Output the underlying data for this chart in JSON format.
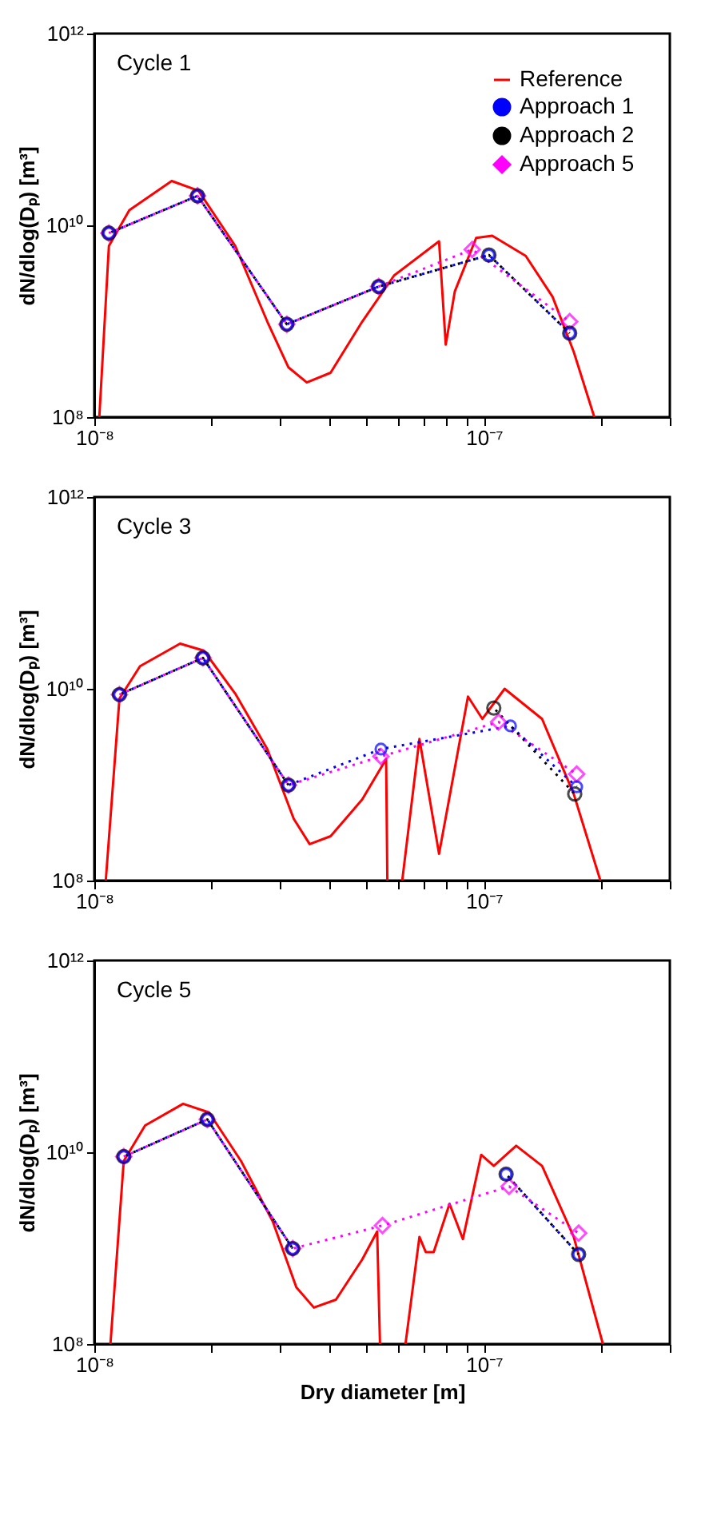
{
  "chart_data": [
    {
      "type": "line",
      "ylabel": "dN/dlog(Dₚ) [m³]",
      "annotations": [
        "Cycle 1"
      ],
      "log": "xy",
      "grid": false,
      "legend": "top right",
      "xlim": [
        1e-08,
        3e-07
      ],
      "ylim": [
        100000000.0,
        1000000000000.0
      ],
      "xticks": [
        {
          "value": 1e-08,
          "label": "10⁻⁸"
        },
        {
          "value": 2e-08,
          "label": null
        },
        {
          "value": 3e-08,
          "label": null
        },
        {
          "value": 4e-08,
          "label": null
        },
        {
          "value": 5e-08,
          "label": null
        },
        {
          "value": 6e-08,
          "label": null
        },
        {
          "value": 7e-08,
          "label": null
        },
        {
          "value": 8e-08,
          "label": null
        },
        {
          "value": 9e-08,
          "label": null
        },
        {
          "value": 1e-07,
          "label": "10⁻⁷"
        },
        {
          "value": 2e-07,
          "label": null
        },
        {
          "value": 3e-07,
          "label": null
        }
      ],
      "yticks": [
        {
          "value": 100000000.0,
          "label": "10⁸"
        },
        {
          "value": 10000000000.0,
          "label": "10¹⁰"
        },
        {
          "value": 1000000000000.0,
          "label": "10¹²"
        }
      ],
      "series": [
        {
          "name": "Reference",
          "color": "#ff0000",
          "line_style": "solid",
          "marker": "none",
          "x": [
            1.03e-08,
            1.09e-08,
            1.23e-08,
            1.58e-08,
            1.85e-08,
            2.3e-08,
            2.78e-08,
            3.15e-08,
            3.51e-08,
            4.04e-08,
            4.87e-08,
            5.88e-08,
            7.55e-08,
            7.67e-08,
            7.98e-08,
            8.42e-08,
            9.55e-08,
            1.05e-07,
            1.28e-07,
            1.5e-07,
            1.7e-07,
            1.92e-07
          ],
          "values": [
            100000000.0,
            6100000000.0,
            14400000000.0,
            29000000000.0,
            23000000000.0,
            6100000000.0,
            990000000.0,
            330000000.0,
            230000000.0,
            290000000.0,
            990000000.0,
            3000000000.0,
            6500000000.0,
            6800000000.0,
            570000000.0,
            2050000000.0,
            7400000000.0,
            7800000000.0,
            4800000000.0,
            1800000000.0,
            480000000.0,
            100000000.0
          ]
        },
        {
          "name": "Approach 1",
          "color": "#0000ff",
          "line_style": "dotted",
          "marker": "circle",
          "x": [
            1.09e-08,
            1.84e-08,
            3.12e-08,
            5.37e-08,
            1.03e-07,
            1.66e-07
          ],
          "values": [
            8300000000.0,
            20300000000.0,
            930000000.0,
            2300000000.0,
            4900000000.0,
            750000000.0
          ]
        },
        {
          "name": "Approach 2",
          "color": "#000000",
          "line_style": "dotted",
          "marker": "circle",
          "x": [
            1.09e-08,
            1.84e-08,
            3.12e-08,
            5.37e-08,
            1.03e-07,
            1.66e-07
          ],
          "values": [
            8300000000.0,
            20300000000.0,
            930000000.0,
            2300000000.0,
            4900000000.0,
            750000000.0
          ]
        },
        {
          "name": "Approach 5",
          "color": "#ff00ff",
          "line_style": "dotted",
          "marker": "diamond",
          "x": [
            1.09e-08,
            1.84e-08,
            3.12e-08,
            5.37e-08,
            9.33e-08,
            1.66e-07
          ],
          "values": [
            8300000000.0,
            20300000000.0,
            930000000.0,
            2300000000.0,
            5600000000.0,
            990000000.0
          ]
        }
      ]
    },
    {
      "type": "line",
      "ylabel": "dN/dlog(Dₚ) [m³]",
      "annotations": [
        "Cycle 3"
      ],
      "log": "xy",
      "grid": false,
      "xlim": [
        1e-08,
        3e-07
      ],
      "ylim": [
        100000000.0,
        1000000000000.0
      ],
      "xticks": [
        {
          "value": 1e-08,
          "label": "10⁻⁸"
        },
        {
          "value": 2e-08,
          "label": null
        },
        {
          "value": 3e-08,
          "label": null
        },
        {
          "value": 4e-08,
          "label": null
        },
        {
          "value": 5e-08,
          "label": null
        },
        {
          "value": 6e-08,
          "label": null
        },
        {
          "value": 7e-08,
          "label": null
        },
        {
          "value": 8e-08,
          "label": null
        },
        {
          "value": 9e-08,
          "label": null
        },
        {
          "value": 1e-07,
          "label": "10⁻⁷"
        },
        {
          "value": 2e-07,
          "label": null
        },
        {
          "value": 3e-07,
          "label": null
        }
      ],
      "yticks": [
        {
          "value": 100000000.0,
          "label": "10⁸"
        },
        {
          "value": 10000000000.0,
          "label": "10¹⁰"
        },
        {
          "value": 1000000000000.0,
          "label": "10¹²"
        }
      ],
      "series": [
        {
          "color": "#ff0000",
          "line_style": "solid",
          "marker": "none",
          "x": [
            1.07e-08,
            1.16e-08,
            1.31e-08,
            1.66e-08,
            1.91e-08,
            2.3e-08,
            2.78e-08,
            3.25e-08,
            3.57e-08,
            4.04e-08,
            4.87e-08,
            5.61e-08,
            5.65e-08,
            5.88e-08,
            6.17e-08,
            6.83e-08,
            7.67e-08,
            9.1e-08,
            9.91e-08,
            1.13e-07,
            1.41e-07,
            1.7e-07,
            1.99e-07
          ],
          "values": [
            100000000.0,
            7900000000.0,
            17200000000.0,
            29600000000.0,
            25000000000.0,
            8900000000.0,
            2350000000.0,
            440000000.0,
            240000000.0,
            290000000.0,
            700000000.0,
            1850000000.0,
            100000000.0,
            null,
            100000000.0,
            3000000000.0,
            190000000.0,
            8300000000.0,
            4850000000.0,
            10000000000.0,
            4850000000.0,
            800000000.0,
            100000000.0
          ]
        },
        {
          "color": "#0000ff",
          "line_style": "dotted",
          "marker": "circle",
          "x": [
            1.16e-08,
            1.9e-08,
            3.15e-08,
            5.44e-08,
            1.17e-07,
            1.73e-07
          ],
          "values": [
            8700000000.0,
            21000000000.0,
            990000000.0,
            2350000000.0,
            4100000000.0,
            950000000.0
          ]
        },
        {
          "color": "#000000",
          "line_style": "dotted",
          "marker": "circle",
          "x": [
            1.16e-08,
            1.9e-08,
            3.15e-08,
            5.44e-08,
            1.06e-07,
            1.71e-07
          ],
          "values": [
            8700000000.0,
            21000000000.0,
            990000000.0,
            null,
            6300000000.0,
            800000000.0
          ]
        },
        {
          "color": "#ff00ff",
          "line_style": "dotted",
          "marker": "diamond",
          "x": [
            1.16e-08,
            1.9e-08,
            3.15e-08,
            5.44e-08,
            1.09e-07,
            1.73e-07
          ],
          "values": [
            8700000000.0,
            21000000000.0,
            990000000.0,
            1970000000.0,
            4500000000.0,
            1290000000.0
          ]
        }
      ]
    },
    {
      "type": "line",
      "xlabel": "Dry diameter [m]",
      "ylabel": "dN/dlog(Dₚ) [m³]",
      "annotations": [
        "Cycle 5"
      ],
      "log": "xy",
      "grid": false,
      "xlim": [
        1e-08,
        3e-07
      ],
      "ylim": [
        100000000.0,
        1000000000000.0
      ],
      "xticks": [
        {
          "value": 1e-08,
          "label": "10⁻⁸"
        },
        {
          "value": 2e-08,
          "label": null
        },
        {
          "value": 3e-08,
          "label": null
        },
        {
          "value": 4e-08,
          "label": null
        },
        {
          "value": 5e-08,
          "label": null
        },
        {
          "value": 6e-08,
          "label": null
        },
        {
          "value": 7e-08,
          "label": null
        },
        {
          "value": 8e-08,
          "label": null
        },
        {
          "value": 9e-08,
          "label": null
        },
        {
          "value": 1e-07,
          "label": "10⁻⁷"
        },
        {
          "value": 2e-07,
          "label": null
        },
        {
          "value": 3e-07,
          "label": null
        }
      ],
      "yticks": [
        {
          "value": 100000000.0,
          "label": "10⁸"
        },
        {
          "value": 10000000000.0,
          "label": "10¹⁰"
        },
        {
          "value": 1000000000000.0,
          "label": "10¹²"
        }
      ],
      "series": [
        {
          "color": "#ff0000",
          "line_style": "solid",
          "marker": "none",
          "x": [
            1.1e-08,
            1.19e-08,
            1.35e-08,
            1.69e-08,
            1.97e-08,
            2.38e-08,
            2.87e-08,
            3.3e-08,
            3.66e-08,
            4.17e-08,
            4.87e-08,
            5.32e-08,
            5.41e-08,
            5.88e-08,
            6.29e-08,
            6.83e-08,
            7.09e-08,
            7.43e-08,
            8.16e-08,
            8.83e-08,
            9.84e-08,
            1.06e-07,
            1.21e-07,
            1.41e-07,
            1.7e-07,
            2.02e-07
          ],
          "values": [
            100000000.0,
            8100000000.0,
            19000000000.0,
            32000000000.0,
            26000000000.0,
            8100000000.0,
            1900000000.0,
            390000000.0,
            240000000.0,
            290000000.0,
            760000000.0,
            1490000000.0,
            100000000.0,
            null,
            100000000.0,
            1310000000.0,
            910000000.0,
            910000000.0,
            2900000000.0,
            1240000000.0,
            9400000000.0,
            7200000000.0,
            11700000000.0,
            7200000000.0,
            1310000000.0,
            100000000.0
          ]
        },
        {
          "color": "#0000ff",
          "line_style": "dotted",
          "marker": "circle",
          "x": [
            1.19e-08,
            1.95e-08,
            3.23e-08,
            5.49e-08,
            1.14e-07,
            1.75e-07
          ],
          "values": [
            9000000000.0,
            22000000000.0,
            990000000.0,
            null,
            5900000000.0,
            860000000.0
          ]
        },
        {
          "color": "#000000",
          "line_style": "dotted",
          "marker": "circle",
          "x": [
            1.19e-08,
            1.95e-08,
            3.23e-08,
            5.49e-08,
            1.14e-07,
            1.75e-07
          ],
          "values": [
            9000000000.0,
            22000000000.0,
            990000000.0,
            null,
            5900000000.0,
            860000000.0
          ]
        },
        {
          "color": "#ff00ff",
          "line_style": "dotted",
          "marker": "diamond",
          "x": [
            1.19e-08,
            1.95e-08,
            3.23e-08,
            5.49e-08,
            1.16e-07,
            1.75e-07
          ],
          "values": [
            9000000000.0,
            22000000000.0,
            990000000.0,
            1720000000.0,
            4400000000.0,
            1430000000.0
          ]
        }
      ]
    }
  ]
}
